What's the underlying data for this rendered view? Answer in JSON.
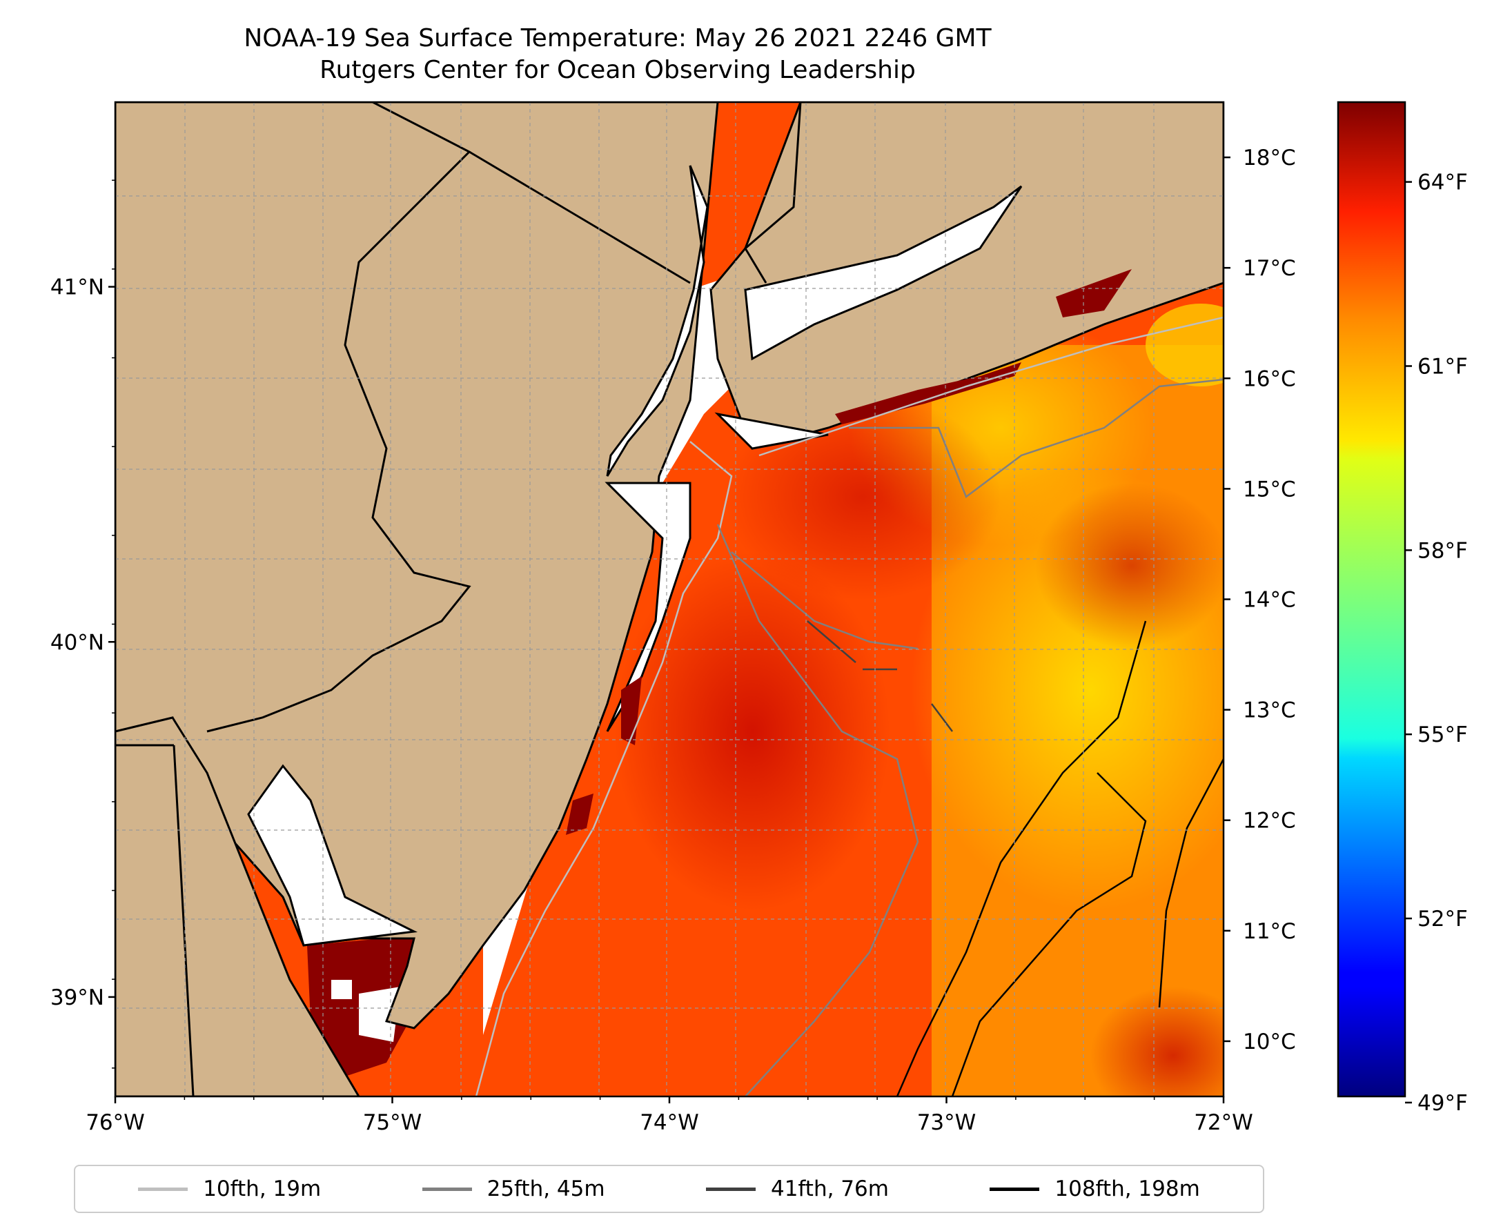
{
  "title": "NOAA-19 Sea Surface Temperature: May 26 2021 2246 GMT",
  "subtitle": "Rutgers Center for Ocean Observing Leadership",
  "map": {
    "lon_range": [
      -76,
      -72
    ],
    "lat_range": [
      38.72,
      41.52
    ],
    "land_color": "#d2b48c",
    "nodata_color": "#ffffff",
    "x_ticks": [
      {
        "value": -76,
        "label": "76°W"
      },
      {
        "value": -75,
        "label": "75°W"
      },
      {
        "value": -74,
        "label": "74°W"
      },
      {
        "value": -73,
        "label": "73°W"
      },
      {
        "value": -72,
        "label": "72°W"
      }
    ],
    "y_ticks": [
      {
        "value": 41,
        "label": "41°N"
      },
      {
        "value": 40,
        "label": "40°N"
      },
      {
        "value": 39,
        "label": "39°N"
      }
    ]
  },
  "colorbar": {
    "colormap": "jet",
    "celsius_range": [
      9.5,
      18.5
    ],
    "celsius_ticks": [
      {
        "value": 18,
        "label": "18°C"
      },
      {
        "value": 17,
        "label": "17°C"
      },
      {
        "value": 16,
        "label": "16°C"
      },
      {
        "value": 15,
        "label": "15°C"
      },
      {
        "value": 14,
        "label": "14°C"
      },
      {
        "value": 13,
        "label": "13°C"
      },
      {
        "value": 12,
        "label": "12°C"
      },
      {
        "value": 11,
        "label": "11°C"
      },
      {
        "value": 10,
        "label": "10°C"
      }
    ],
    "fahrenheit_ticks": [
      {
        "value": 64,
        "label": "64°F"
      },
      {
        "value": 61,
        "label": "61°F"
      },
      {
        "value": 58,
        "label": "58°F"
      },
      {
        "value": 55,
        "label": "55°F"
      },
      {
        "value": 52,
        "label": "52°F"
      },
      {
        "value": 49,
        "label": "49°F"
      }
    ]
  },
  "legend": {
    "items": [
      {
        "label": "10fth, 19m",
        "color": "#bfbfbf"
      },
      {
        "label": "25fth, 45m",
        "color": "#808080"
      },
      {
        "label": "41fth, 76m",
        "color": "#404040"
      },
      {
        "label": "108fth, 198m",
        "color": "#000000"
      }
    ]
  }
}
